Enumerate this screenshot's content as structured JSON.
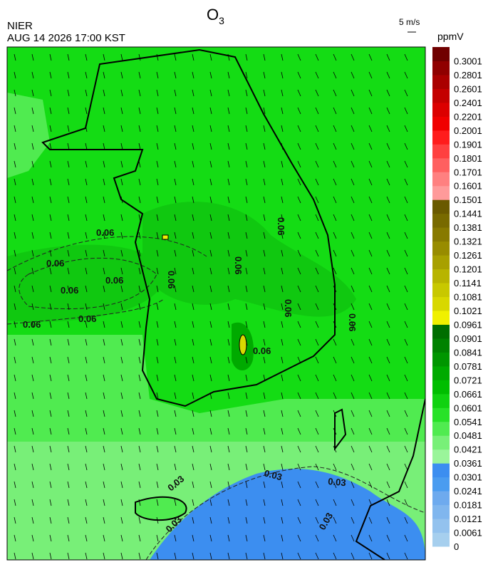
{
  "header": {
    "agency": "NIER",
    "datetime": "AUG 14 2026 17:00 KST",
    "title": "O",
    "title_sub": "3",
    "wind_scale": "5 m/s"
  },
  "colorbar": {
    "unit": "ppmV",
    "labels": [
      "0",
      "0.0061",
      "0.0121",
      "0.0181",
      "0.0241",
      "0.0301",
      "0.0361",
      "0.0421",
      "0.0481",
      "0.0541",
      "0.0601",
      "0.0661",
      "0.0721",
      "0.0781",
      "0.0841",
      "0.0901",
      "0.0961",
      "0.1021",
      "0.1081",
      "0.1141",
      "0.1201",
      "0.1261",
      "0.1321",
      "0.1381",
      "0.1441",
      "0.1501",
      "0.1601",
      "0.1701",
      "0.1801",
      "0.1901",
      "0.2001",
      "0.2201",
      "0.2401",
      "0.2601",
      "0.2801",
      "0.3001"
    ],
    "colors": [
      "#a6cfee",
      "#93c2ee",
      "#80b6ee",
      "#6eaaee",
      "#4a9cf0",
      "#3c8ef0",
      "#9af59a",
      "#78f078",
      "#50eb50",
      "#28e228",
      "#10d210",
      "#00be00",
      "#00aa00",
      "#009600",
      "#008200",
      "#006e00",
      "#f0f000",
      "#d8d800",
      "#c8c800",
      "#b8b400",
      "#a8a000",
      "#988c00",
      "#887a00",
      "#786a00",
      "#6a5a00",
      "#ff9a9a",
      "#ff8080",
      "#ff6060",
      "#ff4040",
      "#ff1c1c",
      "#f00000",
      "#dc0000",
      "#c40000",
      "#aa0000",
      "#900000",
      "#700000"
    ]
  },
  "contours": [
    "0.06",
    "0.06",
    "0.06",
    "0.06",
    "0.06",
    "0.06",
    "0.06",
    "0.06",
    "0.06",
    "0.06",
    "0.06",
    "0.06",
    "0.03",
    "0.03",
    "0.03",
    "0.03",
    "0.03"
  ]
}
